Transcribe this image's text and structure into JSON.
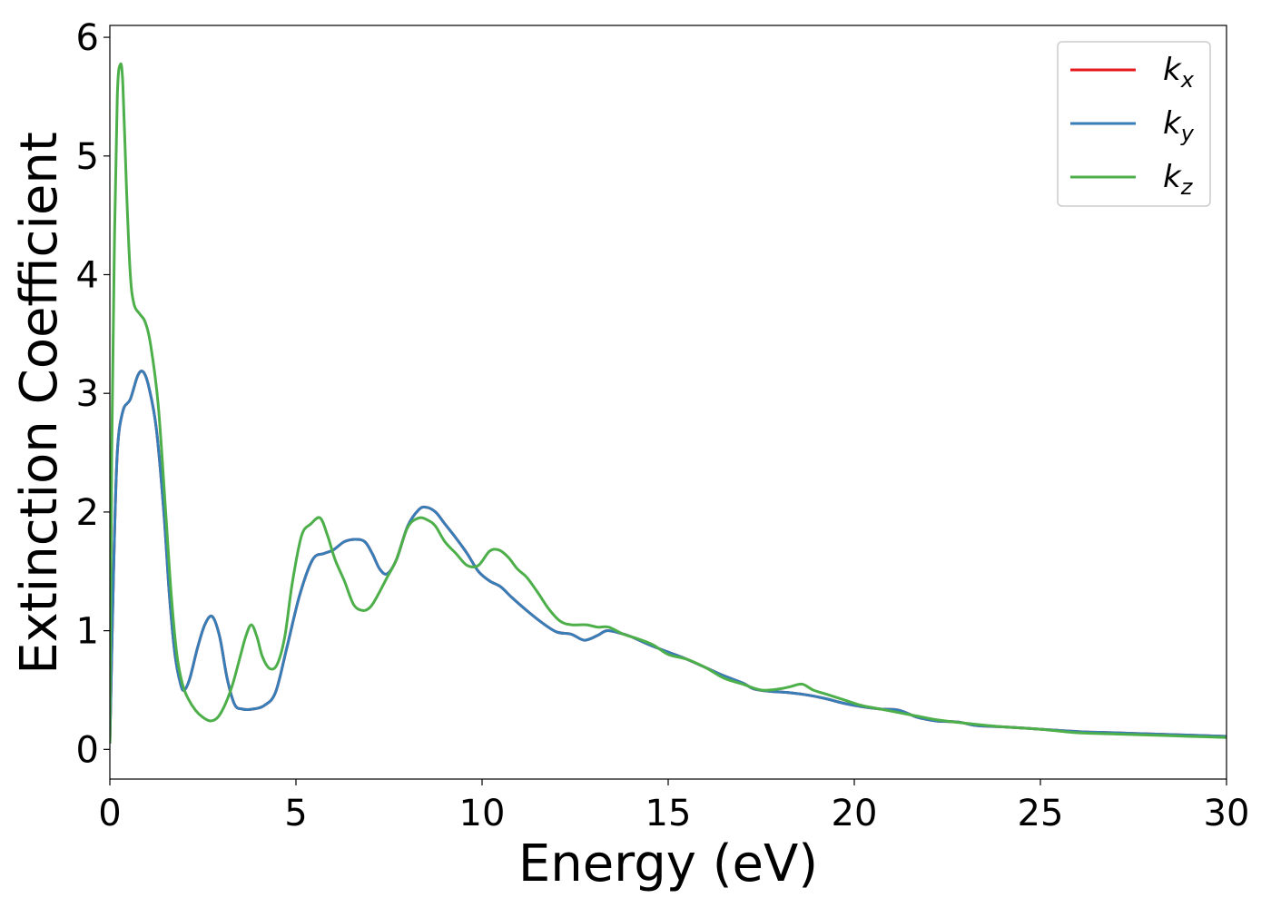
{
  "chart_data": {
    "type": "line",
    "title": "",
    "xlabel": "Energy (eV)",
    "ylabel": "Extinction Coefficient",
    "xlim": [
      0,
      30
    ],
    "ylim": [
      -0.25,
      6.1
    ],
    "x_ticks": [
      0,
      5,
      10,
      15,
      20,
      25,
      30
    ],
    "y_ticks": [
      0,
      1,
      2,
      3,
      4,
      5,
      6
    ],
    "grid": false,
    "legend_position": "top-right",
    "series": [
      {
        "name": "k",
        "subscript": "x",
        "color": "#e41a1c",
        "x": [
          0,
          0.1,
          0.2,
          0.35,
          0.55,
          0.75,
          0.9,
          1.05,
          1.25,
          1.45,
          1.6,
          1.75,
          1.9,
          2.0,
          2.15,
          2.35,
          2.55,
          2.75,
          2.95,
          3.15,
          3.35,
          3.55,
          3.85,
          4.15,
          4.45,
          4.75,
          5.1,
          5.45,
          5.75,
          6.0,
          6.3,
          6.6,
          6.85,
          7.05,
          7.25,
          7.45,
          7.7,
          8.0,
          8.3,
          8.5,
          8.75,
          9.0,
          9.3,
          9.6,
          9.9,
          10.2,
          10.5,
          10.8,
          11.2,
          11.6,
          12.0,
          12.4,
          12.75,
          13.1,
          13.35,
          13.7,
          14.0,
          14.5,
          15.0,
          15.5,
          16.0,
          16.5,
          17.0,
          17.3,
          17.7,
          18.2,
          18.7,
          19.2,
          19.7,
          20.2,
          20.7,
          21.2,
          21.7,
          22.2,
          22.8,
          23.3,
          24.0,
          25.0,
          26.0,
          27.0,
          28.0,
          29.0,
          30.0
        ],
        "values": [
          0.05,
          1.5,
          2.5,
          2.85,
          2.95,
          3.15,
          3.18,
          3.05,
          2.7,
          2.0,
          1.3,
          0.8,
          0.55,
          0.5,
          0.6,
          0.85,
          1.05,
          1.12,
          0.95,
          0.6,
          0.38,
          0.34,
          0.34,
          0.37,
          0.48,
          0.85,
          1.3,
          1.6,
          1.65,
          1.68,
          1.75,
          1.77,
          1.75,
          1.65,
          1.52,
          1.48,
          1.6,
          1.88,
          2.02,
          2.04,
          2.0,
          1.9,
          1.78,
          1.65,
          1.5,
          1.42,
          1.37,
          1.28,
          1.17,
          1.07,
          0.99,
          0.97,
          0.92,
          0.96,
          1.0,
          0.98,
          0.95,
          0.88,
          0.82,
          0.76,
          0.69,
          0.62,
          0.56,
          0.51,
          0.49,
          0.48,
          0.46,
          0.43,
          0.39,
          0.36,
          0.34,
          0.33,
          0.27,
          0.24,
          0.23,
          0.2,
          0.19,
          0.17,
          0.15,
          0.14,
          0.13,
          0.12,
          0.11
        ]
      },
      {
        "name": "k",
        "subscript": "y",
        "color": "#377eb8",
        "x": [
          0,
          0.1,
          0.2,
          0.35,
          0.55,
          0.75,
          0.9,
          1.05,
          1.25,
          1.45,
          1.6,
          1.75,
          1.9,
          2.0,
          2.15,
          2.35,
          2.55,
          2.75,
          2.95,
          3.15,
          3.35,
          3.55,
          3.85,
          4.15,
          4.45,
          4.75,
          5.1,
          5.45,
          5.75,
          6.0,
          6.3,
          6.6,
          6.85,
          7.05,
          7.25,
          7.45,
          7.7,
          8.0,
          8.3,
          8.5,
          8.75,
          9.0,
          9.3,
          9.6,
          9.9,
          10.2,
          10.5,
          10.8,
          11.2,
          11.6,
          12.0,
          12.4,
          12.75,
          13.1,
          13.35,
          13.7,
          14.0,
          14.5,
          15.0,
          15.5,
          16.0,
          16.5,
          17.0,
          17.3,
          17.7,
          18.2,
          18.7,
          19.2,
          19.7,
          20.2,
          20.7,
          21.2,
          21.7,
          22.2,
          22.8,
          23.3,
          24.0,
          25.0,
          26.0,
          27.0,
          28.0,
          29.0,
          30.0
        ],
        "values": [
          0.05,
          1.5,
          2.5,
          2.85,
          2.95,
          3.15,
          3.18,
          3.05,
          2.7,
          2.0,
          1.3,
          0.8,
          0.55,
          0.5,
          0.6,
          0.85,
          1.05,
          1.12,
          0.95,
          0.6,
          0.38,
          0.34,
          0.34,
          0.37,
          0.48,
          0.85,
          1.3,
          1.6,
          1.65,
          1.68,
          1.75,
          1.77,
          1.75,
          1.65,
          1.52,
          1.48,
          1.6,
          1.88,
          2.02,
          2.04,
          2.0,
          1.9,
          1.78,
          1.65,
          1.5,
          1.42,
          1.37,
          1.28,
          1.17,
          1.07,
          0.99,
          0.97,
          0.92,
          0.96,
          1.0,
          0.98,
          0.95,
          0.88,
          0.82,
          0.76,
          0.69,
          0.62,
          0.56,
          0.51,
          0.49,
          0.48,
          0.46,
          0.43,
          0.39,
          0.36,
          0.34,
          0.33,
          0.27,
          0.24,
          0.23,
          0.2,
          0.19,
          0.17,
          0.15,
          0.14,
          0.13,
          0.12,
          0.11
        ]
      },
      {
        "name": "k",
        "subscript": "z",
        "color": "#4daf4a",
        "x": [
          0,
          0.05,
          0.12,
          0.2,
          0.28,
          0.35,
          0.45,
          0.55,
          0.65,
          0.8,
          0.95,
          1.1,
          1.3,
          1.5,
          1.65,
          1.8,
          1.95,
          2.1,
          2.3,
          2.5,
          2.7,
          2.9,
          3.1,
          3.3,
          3.5,
          3.65,
          3.8,
          3.95,
          4.1,
          4.3,
          4.5,
          4.7,
          4.9,
          5.15,
          5.4,
          5.65,
          5.85,
          6.05,
          6.3,
          6.55,
          6.8,
          7.0,
          7.2,
          7.45,
          7.7,
          8.0,
          8.3,
          8.55,
          8.75,
          9.0,
          9.3,
          9.6,
          9.9,
          10.2,
          10.45,
          10.7,
          10.95,
          11.2,
          11.5,
          11.8,
          12.1,
          12.4,
          12.8,
          13.1,
          13.4,
          13.8,
          14.2,
          14.6,
          15.0,
          15.5,
          16.0,
          16.5,
          17.0,
          17.5,
          18.0,
          18.3,
          18.6,
          18.9,
          19.3,
          19.7,
          20.2,
          20.7,
          21.2,
          21.7,
          22.2,
          22.7,
          23.3,
          24.0,
          25.0,
          26.0,
          27.0,
          28.0,
          29.0,
          30.0
        ],
        "values": [
          0.05,
          2.5,
          4.2,
          5.5,
          5.77,
          5.6,
          4.7,
          4.0,
          3.75,
          3.67,
          3.6,
          3.4,
          2.9,
          2.0,
          1.3,
          0.8,
          0.55,
          0.43,
          0.33,
          0.27,
          0.24,
          0.27,
          0.38,
          0.55,
          0.78,
          0.95,
          1.05,
          0.95,
          0.78,
          0.68,
          0.72,
          0.95,
          1.4,
          1.8,
          1.9,
          1.95,
          1.8,
          1.6,
          1.42,
          1.22,
          1.17,
          1.2,
          1.3,
          1.45,
          1.6,
          1.87,
          1.95,
          1.93,
          1.88,
          1.75,
          1.65,
          1.55,
          1.55,
          1.67,
          1.68,
          1.62,
          1.52,
          1.45,
          1.32,
          1.18,
          1.08,
          1.05,
          1.05,
          1.03,
          1.03,
          0.97,
          0.93,
          0.88,
          0.8,
          0.76,
          0.69,
          0.6,
          0.55,
          0.5,
          0.51,
          0.53,
          0.55,
          0.5,
          0.46,
          0.42,
          0.37,
          0.34,
          0.31,
          0.28,
          0.25,
          0.23,
          0.21,
          0.19,
          0.17,
          0.14,
          0.13,
          0.12,
          0.11,
          0.1
        ]
      }
    ]
  }
}
